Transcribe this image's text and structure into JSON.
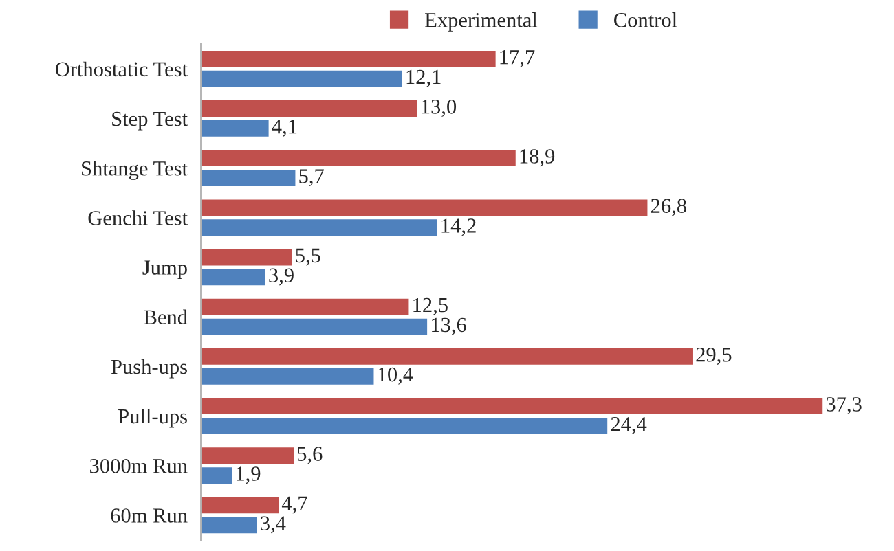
{
  "chart_data": {
    "type": "bar",
    "orientation": "horizontal",
    "legend": "top",
    "categories": [
      "Orthostatic Test",
      "Step Test",
      "Shtange Test",
      "Genchi Test",
      "Jump",
      "Bend",
      "Push-ups",
      "Pull-ups",
      "3000m Run",
      "60m Run"
    ],
    "series": [
      {
        "name": "Experimental",
        "color": "#c0504d",
        "values": [
          17.7,
          13.0,
          18.9,
          26.8,
          5.5,
          12.5,
          29.5,
          37.3,
          5.6,
          4.7
        ],
        "value_labels": [
          "17,7",
          "13,0",
          "18,9",
          "26,8",
          "5,5",
          "12,5",
          "29,5",
          "37,3",
          "5,6",
          "4,7"
        ]
      },
      {
        "name": "Control",
        "color": "#4f81bd",
        "values": [
          12.1,
          4.1,
          5.7,
          14.2,
          3.9,
          13.6,
          10.4,
          24.4,
          1.9,
          3.4
        ],
        "value_labels": [
          "12,1",
          "4,1",
          "5,7",
          "14,2",
          "3,9",
          "13,6",
          "10,4",
          "24,4",
          "1,9",
          "3,4"
        ]
      }
    ]
  }
}
